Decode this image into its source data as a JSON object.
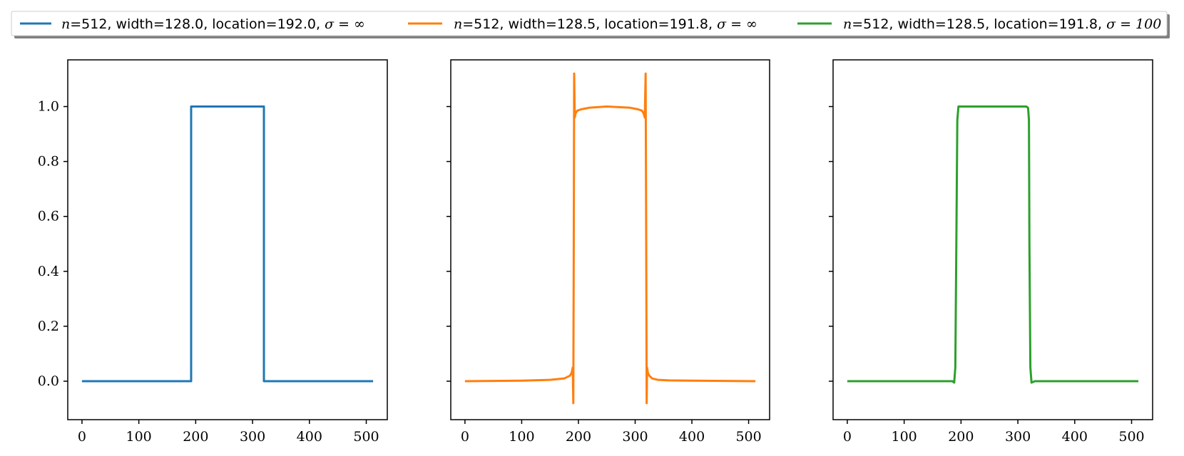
{
  "chart_data": [
    {
      "type": "line",
      "title": "",
      "xlabel": "",
      "ylabel": "",
      "xlim": [
        -25,
        537
      ],
      "ylim": [
        -0.14,
        1.17
      ],
      "x_ticks": [
        0,
        100,
        200,
        300,
        400,
        500
      ],
      "y_ticks": [
        "1.0",
        "0.8",
        "0.6",
        "0.4",
        "0.2",
        "0.0"
      ],
      "grid": false,
      "series": [
        {
          "name": "n=512, width=128.0, location=192.0, σ = ∞",
          "color": "#1f77b4",
          "x": [
            0,
            192,
            192,
            320,
            320,
            512
          ],
          "y": [
            0,
            0,
            1,
            1,
            0,
            0
          ]
        }
      ]
    },
    {
      "type": "line",
      "title": "",
      "xlabel": "",
      "ylabel": "",
      "xlim": [
        -25,
        537
      ],
      "ylim": [
        -0.14,
        1.17
      ],
      "x_ticks": [
        0,
        100,
        200,
        300,
        400,
        500
      ],
      "grid": false,
      "series": [
        {
          "name": "n=512, width=128.5, location=191.8, σ = ∞",
          "color": "#ff7f0e",
          "x": [
            0,
            100,
            150,
            175,
            185,
            188,
            190,
            191,
            191.8,
            192.5,
            193.5,
            195,
            198,
            205,
            220,
            250,
            290,
            305,
            312,
            315,
            317,
            318.5,
            319.5,
            320.3,
            321,
            322.5,
            325,
            330,
            340,
            360,
            400,
            512
          ],
          "y": [
            0,
            0.002,
            0.005,
            0.01,
            0.02,
            0.03,
            0.05,
            -0.08,
            0.5,
            1.12,
            0.96,
            0.975,
            0.985,
            0.99,
            0.996,
            1.0,
            0.996,
            0.99,
            0.985,
            0.975,
            0.96,
            1.12,
            0.5,
            -0.08,
            0.05,
            0.03,
            0.02,
            0.01,
            0.005,
            0.003,
            0.002,
            0
          ]
        }
      ]
    },
    {
      "type": "line",
      "title": "",
      "xlabel": "",
      "ylabel": "",
      "xlim": [
        -25,
        537
      ],
      "ylim": [
        -0.14,
        1.17
      ],
      "x_ticks": [
        0,
        100,
        200,
        300,
        400,
        500
      ],
      "grid": false,
      "series": [
        {
          "name": "n=512, width=128.5, location=191.8, σ = 100",
          "color": "#2ca02c",
          "x": [
            0,
            185,
            188,
            190,
            191.8,
            193.5,
            195.5,
            200,
            315,
            318,
            319.5,
            320.3,
            322,
            324,
            330,
            512
          ],
          "y": [
            0,
            0,
            -0.005,
            0.05,
            0.5,
            0.95,
            1.0,
            1.0,
            1.0,
            0.995,
            0.95,
            0.5,
            0.05,
            -0.005,
            0,
            0
          ]
        }
      ]
    }
  ],
  "legend": {
    "placement": "top",
    "entries": [
      {
        "prefix": "n",
        "text": "=512, width=128.0, location=192.0, ",
        "sigma": "σ = ∞",
        "color": "#1f77b4"
      },
      {
        "prefix": "n",
        "text": "=512, width=128.5, location=191.8, ",
        "sigma": "σ = ∞",
        "color": "#ff7f0e"
      },
      {
        "prefix": "n",
        "text": "=512, width=128.5, location=191.8, ",
        "sigma": "σ = 100",
        "color": "#2ca02c"
      }
    ]
  }
}
